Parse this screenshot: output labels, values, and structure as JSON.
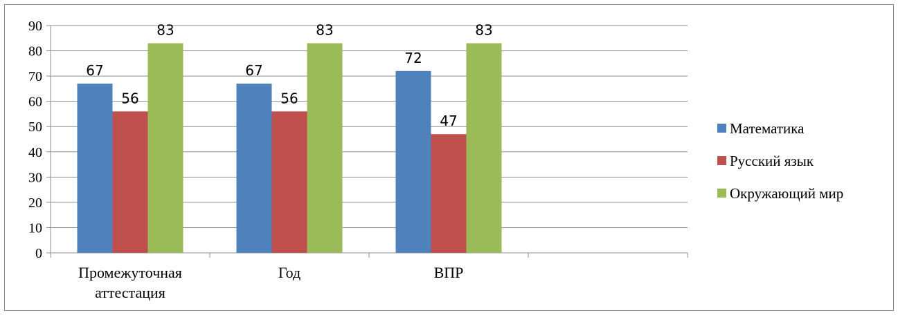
{
  "chart_data": {
    "type": "bar",
    "title": "",
    "xlabel": "",
    "ylabel": "",
    "categories": [
      [
        "Промежуточная",
        "аттестация"
      ],
      [
        "Год"
      ],
      [
        "ВПР"
      ],
      []
    ],
    "series": [
      {
        "name": "Математика",
        "color": "#4f81bd",
        "values": [
          67,
          67,
          72,
          null
        ]
      },
      {
        "name": "Русский язык",
        "color": "#c0504d",
        "values": [
          56,
          56,
          47,
          null
        ]
      },
      {
        "name": "Окружающий мир",
        "color": "#9bbb59",
        "values": [
          83,
          83,
          83,
          null
        ]
      }
    ],
    "ylim": [
      0,
      90
    ],
    "yticks": [
      0,
      10,
      20,
      30,
      40,
      50,
      60,
      70,
      80,
      90
    ],
    "grid": true,
    "legend_position": "right",
    "data_labels": true
  }
}
